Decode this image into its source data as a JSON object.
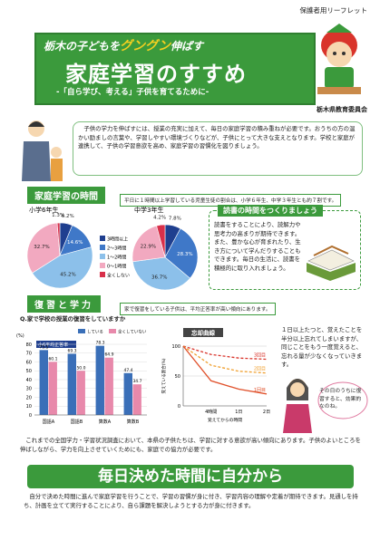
{
  "header": {
    "label": "保護者用リーフレット",
    "catch_pre": "栃木の子どもを",
    "catch_em": "グングン",
    "catch_post": "伸ばす",
    "title": "家庭学習のすすめ",
    "subtitle": "-「自ら学び、考える」子供を育てるために-",
    "publisher": "栃木県教育委員会"
  },
  "intro": "子供の学力を伸ばすには、授業の充実に加えて、毎日の家庭学習の積み重ねが必要です。おうちの方の温かい励ましの言葉や、学習しやすい環境づくりなどが、子供にとって大きな支えとなります。学校と家庭が連携して、子供の学習意欲を高め、家庭学習の習慣化を図りましょう。",
  "study_time": {
    "heading": "家庭学習の時間",
    "note": "平日に１時間以上学習している児童生徒の割合は、小学６年生、中学３年生とも約７割です。",
    "categories": [
      "3時間以上",
      "2〜3時間",
      "1〜2時間",
      "0〜1時間",
      "全くしない"
    ],
    "colors": [
      "#1f3f8f",
      "#3f78c8",
      "#8cc0ea",
      "#f2a9c0",
      "#d8304a"
    ],
    "charts": [
      {
        "type": "pie",
        "title": "小学6年生",
        "values": [
          6.2,
          14.6,
          45.2,
          32.7,
          1.3
        ],
        "value_labels": [
          "6.2%",
          "14.6%",
          "45.2%",
          "32.7%",
          "1.3%"
        ]
      },
      {
        "type": "pie",
        "title": "中学3年生",
        "values": [
          7.8,
          28.3,
          36.7,
          22.9,
          4.2
        ],
        "value_labels": [
          "7.8%",
          "28.3%",
          "36.7%",
          "22.9%",
          "4.2%"
        ]
      }
    ]
  },
  "reading": {
    "heading": "読書の時間をつくりましょう",
    "text": "読書をすることにより、読解力や思考力の高まりが期待できます。また、豊かな心が育まれたり、生き方について学んだりすることもできます。毎日の生活に、読書を積極的に取り入れましょう。"
  },
  "review": {
    "heading": "復習と学力",
    "note": "家で復習をしている子供は、平均正答率が高い傾向にあります。",
    "question": "Q.家で学校の授業の復習をしていますか",
    "bar_chart": {
      "type": "bar",
      "subtitle": "小6平均正答率",
      "ylabel": "(%)",
      "categories": [
        "国語A",
        "国語B",
        "算数A",
        "算数B"
      ],
      "ylim": [
        0,
        80
      ],
      "yticks": [
        0,
        10,
        20,
        30,
        40,
        50,
        60,
        70,
        80
      ],
      "series": [
        {
          "name": "している",
          "color": "#3a6fb8",
          "values": [
            73.5,
            69.3,
            78.3,
            47.4
          ],
          "value_labels": [
            "73.5",
            "69.3",
            "78.3",
            "47.4"
          ]
        },
        {
          "name": "全くしていない",
          "color": "#e889ab",
          "values": [
            60.1,
            50.0,
            64.9,
            34.7
          ],
          "value_labels": [
            "60.1",
            "50.0",
            "64.9",
            "34.7"
          ]
        }
      ]
    },
    "line_chart": {
      "type": "line",
      "title": "忘却曲線",
      "ylabel": "覚えている割合(%)",
      "xlabel": "覚えてからの時間",
      "categories": [
        null,
        "4時間",
        "1日",
        "2日"
      ],
      "ylim": [
        0,
        100
      ],
      "yticks": [
        0,
        50,
        100
      ],
      "series": [
        {
          "name": "3回目",
          "color": "#d9342b",
          "style": "dashed",
          "values": [
            100,
            86,
            80,
            78
          ]
        },
        {
          "name": "2回目",
          "color": "#f0a030",
          "style": "dashed",
          "values": [
            100,
            68,
            58,
            55
          ]
        },
        {
          "name": "1回目",
          "color": "#e0502a",
          "style": "solid",
          "values": [
            100,
            42,
            28,
            20
          ]
        }
      ]
    },
    "callout": "１日以上たつと、覚えたことを半分以上忘れてしまいますが、同じことをもう一度覚えると、忘れる量が少なくなっていきます。",
    "speech": "その日のうちに復習すると、効果的なのね。"
  },
  "closing": "これまでの全国学力・学習状況調査において、本県の子供たちは、学習に対する意欲が高い傾向にあります。子供のよいところを伸ばしながら、学力を向上させていくためにも、家庭での協力が必要です。",
  "footer": {
    "heading": "毎日決めた時間に自分から",
    "text": "自分で決めた時間に進んで家庭学習を行うことで、学習の習慣が身に付き、学習内容の理解や定着が期待できます。見通しを持ち、計画を立てて実行することにより、自ら課題を解決しようとする力が身に付きます。"
  }
}
